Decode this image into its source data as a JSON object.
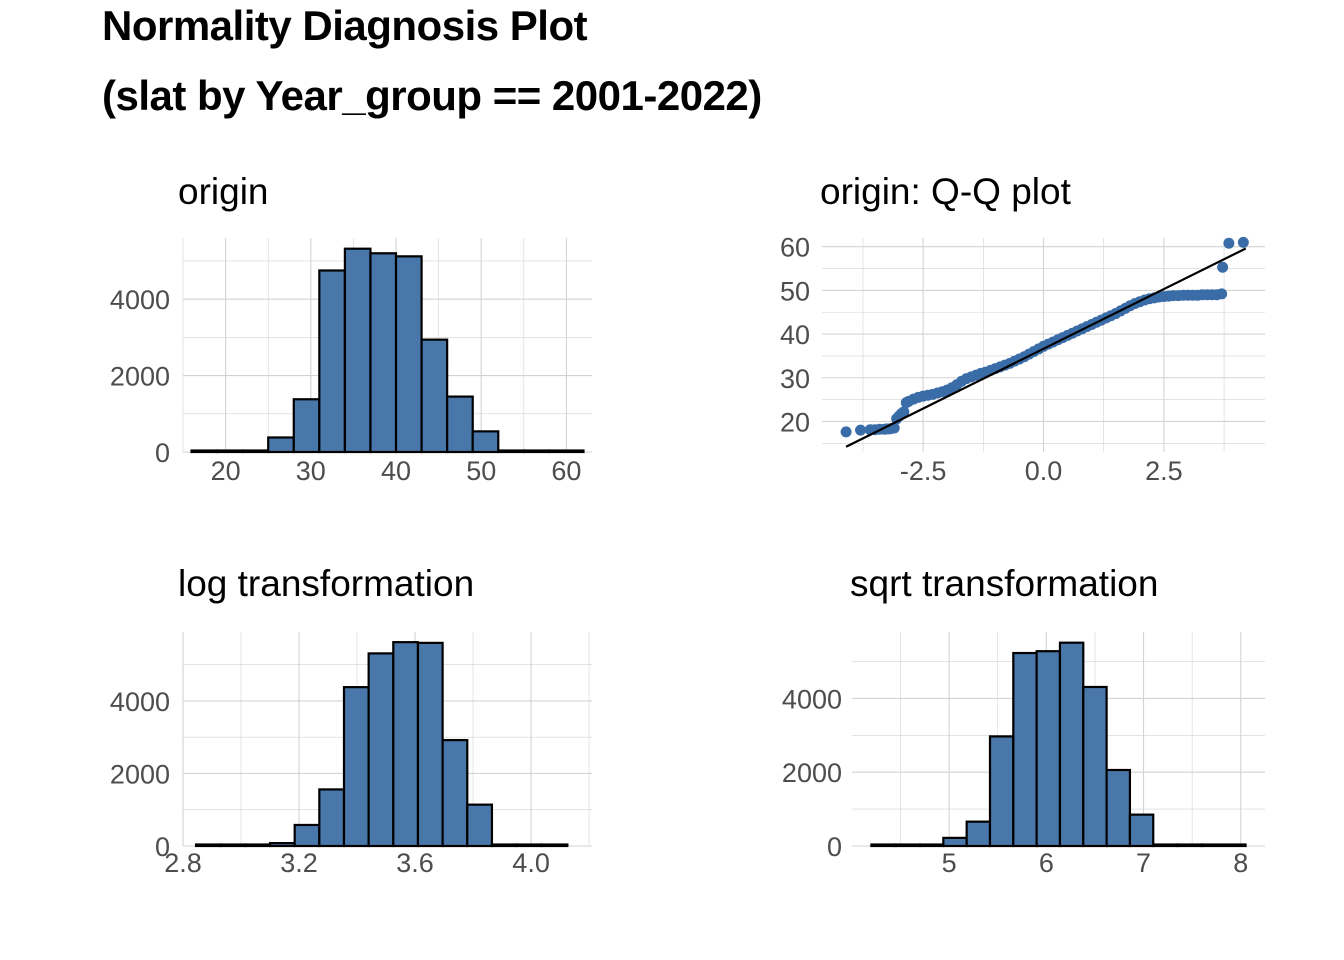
{
  "figure": {
    "title_line1": "Normality Diagnosis Plot",
    "title_line2": "(slat by Year_group == 2001-2022)"
  },
  "colors": {
    "bar_fill": "#4a77aa",
    "bar_stroke": "#000000",
    "point": "#3a6da8",
    "grid": "#d3d3d3",
    "tick_text": "#4d4d4d"
  },
  "chart_data": [
    {
      "type": "histogram",
      "title": "origin",
      "xlim": [
        15,
        63
      ],
      "ylim": [
        0,
        5600
      ],
      "xticks": [
        20,
        30,
        40,
        50,
        60
      ],
      "xtick_labels": [
        "20",
        "30",
        "40",
        "50",
        "60"
      ],
      "yticks": [
        0,
        2000,
        4000
      ],
      "ytick_labels": [
        "0",
        "2000",
        "4000"
      ],
      "bins": [
        {
          "x0": 16,
          "x1": 19,
          "count": 10
        },
        {
          "x0": 19,
          "x1": 22,
          "count": 10
        },
        {
          "x0": 22,
          "x1": 25,
          "count": 5
        },
        {
          "x0": 25,
          "x1": 28,
          "count": 380
        },
        {
          "x0": 28,
          "x1": 31,
          "count": 1380
        },
        {
          "x0": 31,
          "x1": 34,
          "count": 4750
        },
        {
          "x0": 34,
          "x1": 37,
          "count": 5320
        },
        {
          "x0": 37,
          "x1": 40,
          "count": 5200
        },
        {
          "x0": 40,
          "x1": 43,
          "count": 5120
        },
        {
          "x0": 43,
          "x1": 46,
          "count": 2940
        },
        {
          "x0": 46,
          "x1": 49,
          "count": 1450
        },
        {
          "x0": 49,
          "x1": 52,
          "count": 540
        },
        {
          "x0": 52,
          "x1": 55,
          "count": 15
        },
        {
          "x0": 55,
          "x1": 58,
          "count": 5
        },
        {
          "x0": 58,
          "x1": 62,
          "count": 5
        }
      ]
    },
    {
      "type": "scatter",
      "title": "origin: Q-Q plot",
      "xlim": [
        -4.6,
        4.6
      ],
      "ylim": [
        13,
        62
      ],
      "xticks": [
        -2.5,
        0,
        2.5
      ],
      "xtick_labels": [
        "-2.5",
        "0.0",
        "2.5"
      ],
      "yticks": [
        20,
        30,
        40,
        50,
        60
      ],
      "ytick_labels": [
        "20",
        "30",
        "40",
        "50",
        "60"
      ],
      "reference_line": [
        {
          "x": -4.1,
          "y": 14.2
        },
        {
          "x": 4.2,
          "y": 59.6
        }
      ],
      "points": [
        {
          "x": -4.1,
          "y": 17.6
        },
        {
          "x": -3.8,
          "y": 18.0
        },
        {
          "x": -3.6,
          "y": 18.1
        },
        {
          "x": -3.5,
          "y": 18.1
        },
        {
          "x": -3.4,
          "y": 18.2
        },
        {
          "x": -3.3,
          "y": 18.2
        },
        {
          "x": -3.25,
          "y": 18.3
        },
        {
          "x": -3.2,
          "y": 18.3
        },
        {
          "x": -3.15,
          "y": 18.4
        },
        {
          "x": -3.1,
          "y": 18.5
        },
        {
          "x": -3.05,
          "y": 20.6
        },
        {
          "x": -3.0,
          "y": 21.2
        },
        {
          "x": -2.95,
          "y": 21.8
        },
        {
          "x": -2.9,
          "y": 22.2
        },
        {
          "x": -2.85,
          "y": 24.3
        },
        {
          "x": -2.8,
          "y": 24.6
        },
        {
          "x": -2.7,
          "y": 25.1
        },
        {
          "x": -2.6,
          "y": 25.5
        },
        {
          "x": -2.5,
          "y": 25.8
        },
        {
          "x": -2.4,
          "y": 26.0
        },
        {
          "x": -2.3,
          "y": 26.2
        },
        {
          "x": -2.2,
          "y": 26.5
        },
        {
          "x": -2.1,
          "y": 26.8
        },
        {
          "x": -2.0,
          "y": 27.2
        },
        {
          "x": -1.9,
          "y": 27.7
        },
        {
          "x": -1.8,
          "y": 28.4
        },
        {
          "x": -1.7,
          "y": 29.2
        },
        {
          "x": -1.6,
          "y": 29.8
        },
        {
          "x": -1.5,
          "y": 30.2
        },
        {
          "x": -1.4,
          "y": 30.6
        },
        {
          "x": -1.3,
          "y": 31.0
        },
        {
          "x": -1.2,
          "y": 31.3
        },
        {
          "x": -1.1,
          "y": 31.7
        },
        {
          "x": -1.0,
          "y": 32.1
        },
        {
          "x": -0.9,
          "y": 32.5
        },
        {
          "x": -0.8,
          "y": 32.9
        },
        {
          "x": -0.7,
          "y": 33.3
        },
        {
          "x": -0.6,
          "y": 33.8
        },
        {
          "x": -0.5,
          "y": 34.3
        },
        {
          "x": -0.4,
          "y": 34.8
        },
        {
          "x": -0.3,
          "y": 35.4
        },
        {
          "x": -0.2,
          "y": 36.0
        },
        {
          "x": -0.1,
          "y": 36.6
        },
        {
          "x": 0.0,
          "y": 37.2
        },
        {
          "x": 0.1,
          "y": 37.7
        },
        {
          "x": 0.2,
          "y": 38.2
        },
        {
          "x": 0.3,
          "y": 38.7
        },
        {
          "x": 0.4,
          "y": 39.2
        },
        {
          "x": 0.5,
          "y": 39.7
        },
        {
          "x": 0.6,
          "y": 40.2
        },
        {
          "x": 0.7,
          "y": 40.7
        },
        {
          "x": 0.8,
          "y": 41.2
        },
        {
          "x": 0.9,
          "y": 41.7
        },
        {
          "x": 1.0,
          "y": 42.2
        },
        {
          "x": 1.1,
          "y": 42.7
        },
        {
          "x": 1.2,
          "y": 43.2
        },
        {
          "x": 1.3,
          "y": 43.7
        },
        {
          "x": 1.4,
          "y": 44.2
        },
        {
          "x": 1.5,
          "y": 44.7
        },
        {
          "x": 1.6,
          "y": 45.3
        },
        {
          "x": 1.7,
          "y": 45.9
        },
        {
          "x": 1.8,
          "y": 46.5
        },
        {
          "x": 1.9,
          "y": 47.0
        },
        {
          "x": 2.0,
          "y": 47.4
        },
        {
          "x": 2.1,
          "y": 47.8
        },
        {
          "x": 2.2,
          "y": 48.1
        },
        {
          "x": 2.3,
          "y": 48.3
        },
        {
          "x": 2.4,
          "y": 48.5
        },
        {
          "x": 2.5,
          "y": 48.6
        },
        {
          "x": 2.6,
          "y": 48.7
        },
        {
          "x": 2.7,
          "y": 48.8
        },
        {
          "x": 2.8,
          "y": 48.8
        },
        {
          "x": 2.9,
          "y": 48.9
        },
        {
          "x": 3.0,
          "y": 48.9
        },
        {
          "x": 3.1,
          "y": 48.9
        },
        {
          "x": 3.2,
          "y": 48.9
        },
        {
          "x": 3.3,
          "y": 49.0
        },
        {
          "x": 3.4,
          "y": 49.0
        },
        {
          "x": 3.5,
          "y": 49.0
        },
        {
          "x": 3.6,
          "y": 49.0
        },
        {
          "x": 3.7,
          "y": 49.2
        },
        {
          "x": 3.72,
          "y": 55.3
        },
        {
          "x": 3.85,
          "y": 60.8
        },
        {
          "x": 4.15,
          "y": 61.0
        }
      ]
    },
    {
      "type": "histogram",
      "title": "log transformation",
      "xlim": [
        2.8,
        4.21
      ],
      "ylim": [
        0,
        5900
      ],
      "xticks": [
        2.8,
        3.2,
        3.6,
        4.0
      ],
      "xtick_labels": [
        "2.8",
        "3.2",
        "3.6",
        "4.0"
      ],
      "yticks": [
        0,
        2000,
        4000
      ],
      "ytick_labels": [
        "0",
        "2000",
        "4000"
      ],
      "bins": [
        {
          "x0": 2.845,
          "x1": 2.93,
          "count": 10
        },
        {
          "x0": 2.93,
          "x1": 3.015,
          "count": 5
        },
        {
          "x0": 3.015,
          "x1": 3.1,
          "count": 10
        },
        {
          "x0": 3.1,
          "x1": 3.185,
          "count": 80
        },
        {
          "x0": 3.185,
          "x1": 3.27,
          "count": 580
        },
        {
          "x0": 3.27,
          "x1": 3.355,
          "count": 1560
        },
        {
          "x0": 3.355,
          "x1": 3.44,
          "count": 4380
        },
        {
          "x0": 3.44,
          "x1": 3.525,
          "count": 5310
        },
        {
          "x0": 3.525,
          "x1": 3.61,
          "count": 5620
        },
        {
          "x0": 3.61,
          "x1": 3.695,
          "count": 5600
        },
        {
          "x0": 3.695,
          "x1": 3.78,
          "count": 2920
        },
        {
          "x0": 3.78,
          "x1": 3.865,
          "count": 1140
        },
        {
          "x0": 3.865,
          "x1": 3.95,
          "count": 5
        },
        {
          "x0": 3.95,
          "x1": 4.035,
          "count": 5
        },
        {
          "x0": 4.035,
          "x1": 4.125,
          "count": 5
        }
      ]
    },
    {
      "type": "histogram",
      "title": "sqrt transformation",
      "xlim": [
        4.0,
        8.25
      ],
      "ylim": [
        0,
        5800
      ],
      "xticks": [
        5,
        6,
        7,
        8
      ],
      "xtick_labels": [
        "5",
        "6",
        "7",
        "8"
      ],
      "yticks": [
        0,
        2000,
        4000
      ],
      "ytick_labels": [
        "0",
        "2000",
        "4000"
      ],
      "bins": [
        {
          "x0": 4.2,
          "x1": 4.45,
          "count": 10
        },
        {
          "x0": 4.45,
          "x1": 4.7,
          "count": 5
        },
        {
          "x0": 4.7,
          "x1": 4.94,
          "count": 5
        },
        {
          "x0": 4.94,
          "x1": 5.18,
          "count": 220
        },
        {
          "x0": 5.18,
          "x1": 5.42,
          "count": 660
        },
        {
          "x0": 5.42,
          "x1": 5.66,
          "count": 2970
        },
        {
          "x0": 5.66,
          "x1": 5.9,
          "count": 5230
        },
        {
          "x0": 5.9,
          "x1": 6.14,
          "count": 5280
        },
        {
          "x0": 6.14,
          "x1": 6.38,
          "count": 5510
        },
        {
          "x0": 6.38,
          "x1": 6.62,
          "count": 4310
        },
        {
          "x0": 6.62,
          "x1": 6.86,
          "count": 2060
        },
        {
          "x0": 6.86,
          "x1": 7.1,
          "count": 850
        },
        {
          "x0": 7.1,
          "x1": 7.35,
          "count": 5
        },
        {
          "x0": 7.35,
          "x1": 7.6,
          "count": 5
        },
        {
          "x0": 7.6,
          "x1": 8.05,
          "count": 5
        }
      ]
    }
  ]
}
